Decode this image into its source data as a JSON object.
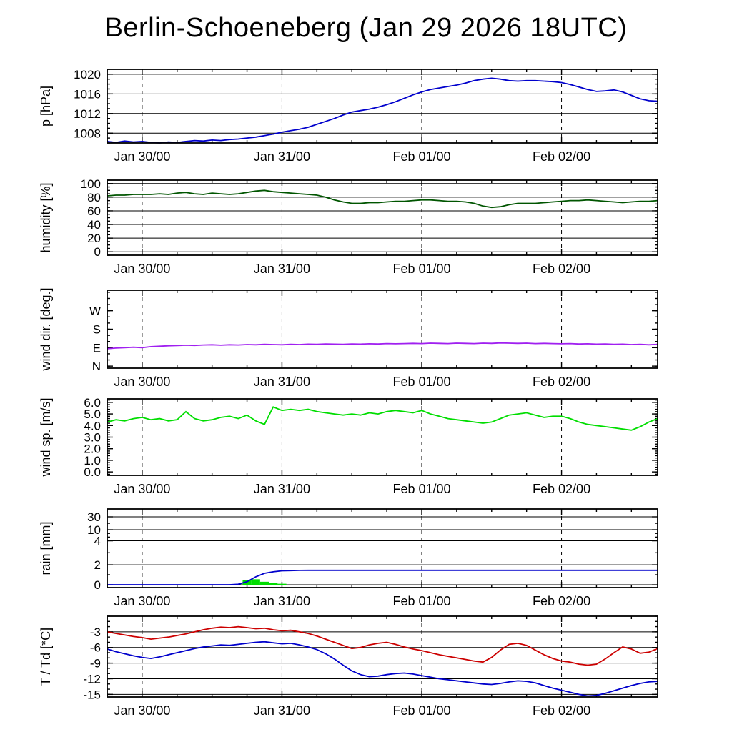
{
  "title": "Berlin-Schoeneberg (Jan 29 2026 18UTC)",
  "chart_data": {
    "type": "line",
    "title": "Berlin-Schoeneberg (Jan 29 2026 18UTC)",
    "x_unit": "hours since Jan 29 2026 18UTC",
    "xlim": [
      0,
      94.5
    ],
    "x_minor_step": 6,
    "xticks": [
      {
        "t": 6,
        "label": "Jan 30/00"
      },
      {
        "t": 30,
        "label": "Jan 31/00"
      },
      {
        "t": 54,
        "label": "Feb 01/00"
      },
      {
        "t": 78,
        "label": "Feb 02/00"
      }
    ],
    "t": [
      0,
      1.5,
      3,
      4.5,
      6,
      7.5,
      9,
      10.5,
      12,
      13.5,
      15,
      16.5,
      18,
      19.5,
      21,
      22.5,
      24,
      25.5,
      27,
      28.5,
      30,
      31.5,
      33,
      34.5,
      36,
      37.5,
      39,
      40.5,
      42,
      43.5,
      45,
      46.5,
      48,
      49.5,
      51,
      52.5,
      54,
      55.5,
      57,
      58.5,
      60,
      61.5,
      63,
      64.5,
      66,
      67.5,
      69,
      70.5,
      72,
      73.5,
      75,
      76.5,
      78,
      79.5,
      81,
      82.5,
      84,
      85.5,
      87,
      88.5,
      90,
      91.5,
      93,
      94.5
    ],
    "panels": [
      {
        "id": "pressure",
        "ylabel": "p [hPa]",
        "ylim": [
          1006,
          1021
        ],
        "grid": true,
        "minor_step": 1,
        "yticks": [
          {
            "v": 1008,
            "label": "1008"
          },
          {
            "v": 1012,
            "label": "1012"
          },
          {
            "v": 1016,
            "label": "1016"
          },
          {
            "v": 1020,
            "label": "1020"
          }
        ],
        "series": [
          {
            "name": "pressure",
            "color": "#0000cc",
            "values": [
              1006.3,
              1006.1,
              1006.4,
              1006.2,
              1006.3,
              1006.1,
              1006.0,
              1006.2,
              1006.1,
              1006.3,
              1006.5,
              1006.4,
              1006.6,
              1006.5,
              1006.7,
              1006.8,
              1007.0,
              1007.2,
              1007.5,
              1007.8,
              1008.2,
              1008.5,
              1008.8,
              1009.2,
              1009.8,
              1010.4,
              1011.0,
              1011.7,
              1012.3,
              1012.6,
              1012.9,
              1013.3,
              1013.8,
              1014.4,
              1015.1,
              1015.8,
              1016.4,
              1016.9,
              1017.2,
              1017.5,
              1017.8,
              1018.2,
              1018.7,
              1019.0,
              1019.2,
              1019.0,
              1018.7,
              1018.6,
              1018.7,
              1018.7,
              1018.6,
              1018.5,
              1018.3,
              1017.9,
              1017.4,
              1016.9,
              1016.5,
              1016.6,
              1016.8,
              1016.4,
              1015.7,
              1015.0,
              1014.6,
              1014.5
            ]
          }
        ]
      },
      {
        "id": "humidity",
        "ylabel": "humidity [%]",
        "ylim": [
          -5,
          105
        ],
        "grid": true,
        "minor_step": 5,
        "yticks": [
          {
            "v": 0,
            "label": "0"
          },
          {
            "v": 20,
            "label": "20"
          },
          {
            "v": 40,
            "label": "40"
          },
          {
            "v": 60,
            "label": "60"
          },
          {
            "v": 80,
            "label": "80"
          },
          {
            "v": 100,
            "label": "100"
          }
        ],
        "series": [
          {
            "name": "humidity",
            "color": "#005500",
            "values": [
              82,
              83,
              83,
              84,
              84,
              84,
              85,
              84,
              86,
              87,
              85,
              84,
              86,
              85,
              84,
              85,
              87,
              89,
              90,
              88,
              87,
              86,
              85,
              84,
              83,
              80,
              76,
              73,
              71,
              71,
              72,
              72,
              73,
              74,
              74,
              75,
              76,
              76,
              75,
              74,
              74,
              73,
              71,
              67,
              65,
              66,
              69,
              71,
              71,
              71,
              72,
              73,
              74,
              75,
              75,
              76,
              75,
              74,
              73,
              72,
              73,
              74,
              74,
              75
            ]
          }
        ]
      },
      {
        "id": "wind-direction",
        "ylabel": "wind dir. [deg.]",
        "ylim": [
          -10,
          370
        ],
        "grid": false,
        "minor_step": 30,
        "yticks": [
          {
            "v": 0,
            "label": "N"
          },
          {
            "v": 90,
            "label": "E"
          },
          {
            "v": 180,
            "label": "S"
          },
          {
            "v": 270,
            "label": "W"
          }
        ],
        "series": [
          {
            "name": "wind direction",
            "color": "#a020f0",
            "values": [
              85,
              88,
              90,
              92,
              90,
              95,
              97,
              99,
              100,
              102,
              101,
              103,
              104,
              102,
              104,
              103,
              105,
              104,
              106,
              105,
              104,
              106,
              105,
              107,
              106,
              108,
              107,
              106,
              108,
              107,
              109,
              108,
              110,
              109,
              110,
              111,
              110,
              112,
              111,
              110,
              112,
              111,
              110,
              112,
              111,
              113,
              112,
              111,
              112,
              110,
              111,
              110,
              109,
              110,
              108,
              109,
              107,
              108,
              106,
              107,
              105,
              106,
              104,
              106
            ]
          }
        ]
      },
      {
        "id": "wind-speed",
        "ylabel": "wind sp. [m/s]",
        "ylim": [
          -0.3,
          6.3
        ],
        "grid": false,
        "minor_step": 0.2,
        "yticks": [
          {
            "v": 0,
            "label": "0.0"
          },
          {
            "v": 1,
            "label": "1.0"
          },
          {
            "v": 2,
            "label": "2.0"
          },
          {
            "v": 3,
            "label": "3.0"
          },
          {
            "v": 4,
            "label": "4.0"
          },
          {
            "v": 5,
            "label": "5.0"
          },
          {
            "v": 6,
            "label": "6.0"
          }
        ],
        "series": [
          {
            "name": "wind speed",
            "color": "#00dd00",
            "values": [
              4.3,
              4.5,
              4.4,
              4.6,
              4.7,
              4.5,
              4.6,
              4.4,
              4.5,
              5.2,
              4.6,
              4.4,
              4.5,
              4.7,
              4.8,
              4.6,
              4.9,
              4.4,
              4.1,
              5.6,
              5.3,
              5.4,
              5.3,
              5.4,
              5.2,
              5.1,
              5.0,
              4.9,
              5.0,
              4.9,
              5.1,
              5.0,
              5.2,
              5.3,
              5.2,
              5.1,
              5.3,
              5.0,
              4.8,
              4.6,
              4.5,
              4.4,
              4.3,
              4.2,
              4.3,
              4.6,
              4.9,
              5.0,
              5.1,
              4.9,
              4.7,
              4.8,
              4.8,
              4.6,
              4.3,
              4.1,
              4.0,
              3.9,
              3.8,
              3.7,
              3.6,
              3.9,
              4.3,
              4.6
            ]
          }
        ]
      },
      {
        "id": "rain",
        "ylabel": "rain [mm]",
        "scale": "piecewise",
        "ymap": [
          [
            0,
            0.036
          ],
          [
            2,
            0.29
          ],
          [
            4,
            0.595
          ],
          [
            10,
            0.736
          ],
          [
            30,
            0.9
          ],
          [
            100,
            1.0
          ]
        ],
        "grid": true,
        "minor_values": [
          1,
          3,
          6,
          8,
          20
        ],
        "yticks": [
          {
            "v": 0,
            "label": "0"
          },
          {
            "v": 2,
            "label": "2"
          },
          {
            "v": 4,
            "label": "4"
          },
          {
            "v": 10,
            "label": "10"
          },
          {
            "v": 30,
            "label": "30"
          }
        ],
        "bars": {
          "name": "rain amount",
          "color": "#00dd00",
          "width": 1.5,
          "values": [
            [
              24,
              0.5
            ],
            [
              25.5,
              0.55
            ],
            [
              27,
              0.3
            ],
            [
              28.5,
              0.2
            ],
            [
              30,
              0.1
            ]
          ]
        },
        "series": [
          {
            "name": "accumulated rain",
            "color": "#0000cc",
            "values": [
              0,
              0,
              0,
              0,
              0,
              0,
              0,
              0,
              0,
              0,
              0,
              0,
              0,
              0,
              0,
              0.05,
              0.3,
              0.8,
              1.15,
              1.3,
              1.4,
              1.42,
              1.44,
              1.45,
              1.45,
              1.45,
              1.45,
              1.45,
              1.45,
              1.45,
              1.45,
              1.45,
              1.45,
              1.45,
              1.45,
              1.45,
              1.45,
              1.45,
              1.45,
              1.45,
              1.45,
              1.45,
              1.45,
              1.45,
              1.45,
              1.45,
              1.45,
              1.45,
              1.45,
              1.45,
              1.45,
              1.45,
              1.45,
              1.45,
              1.45,
              1.45,
              1.45,
              1.45,
              1.45,
              1.45,
              1.45,
              1.45,
              1.45,
              1.45
            ]
          }
        ]
      },
      {
        "id": "temperature",
        "ylabel": "T / Td [*C]",
        "ylim": [
          -15.5,
          0
        ],
        "grid": true,
        "minor_step": 1,
        "yticks": [
          {
            "v": -3,
            "label": "-3"
          },
          {
            "v": -6,
            "label": "-6"
          },
          {
            "v": -9,
            "label": "-9"
          },
          {
            "v": -12,
            "label": "-12"
          },
          {
            "v": -15,
            "label": "-15"
          }
        ],
        "series": [
          {
            "name": "temperature",
            "color": "#cc0000",
            "values": [
              -3.0,
              -3.3,
              -3.6,
              -3.9,
              -4.1,
              -4.4,
              -4.2,
              -4.0,
              -3.7,
              -3.4,
              -3.0,
              -2.6,
              -2.3,
              -2.1,
              -2.2,
              -2.0,
              -2.2,
              -2.4,
              -2.3,
              -2.6,
              -2.8,
              -2.7,
              -3.0,
              -3.3,
              -3.8,
              -4.4,
              -5.0,
              -5.6,
              -6.2,
              -6.0,
              -5.5,
              -5.2,
              -5.0,
              -5.4,
              -5.9,
              -6.3,
              -6.6,
              -7.0,
              -7.4,
              -7.7,
              -8.0,
              -8.3,
              -8.6,
              -8.8,
              -7.9,
              -6.5,
              -5.4,
              -5.2,
              -5.6,
              -6.5,
              -7.4,
              -8.1,
              -8.6,
              -8.8,
              -9.2,
              -9.4,
              -9.2,
              -8.2,
              -7.0,
              -5.9,
              -6.3,
              -7.1,
              -6.9,
              -6.2
            ]
          },
          {
            "name": "dewpoint",
            "color": "#0000cc",
            "values": [
              -6.3,
              -6.8,
              -7.2,
              -7.6,
              -7.9,
              -8.1,
              -7.8,
              -7.4,
              -7.0,
              -6.6,
              -6.2,
              -5.9,
              -5.7,
              -5.5,
              -5.6,
              -5.4,
              -5.2,
              -5.0,
              -4.9,
              -5.1,
              -5.3,
              -5.2,
              -5.5,
              -5.9,
              -6.4,
              -7.2,
              -8.2,
              -9.4,
              -10.5,
              -11.2,
              -11.6,
              -11.5,
              -11.2,
              -11.0,
              -10.9,
              -11.1,
              -11.4,
              -11.7,
              -12.0,
              -12.2,
              -12.4,
              -12.6,
              -12.8,
              -13.0,
              -13.1,
              -12.9,
              -12.6,
              -12.4,
              -12.5,
              -12.8,
              -13.3,
              -13.8,
              -14.2,
              -14.6,
              -15.0,
              -15.3,
              -15.2,
              -14.8,
              -14.3,
              -13.8,
              -13.3,
              -12.9,
              -12.6,
              -12.5
            ]
          }
        ]
      }
    ]
  }
}
